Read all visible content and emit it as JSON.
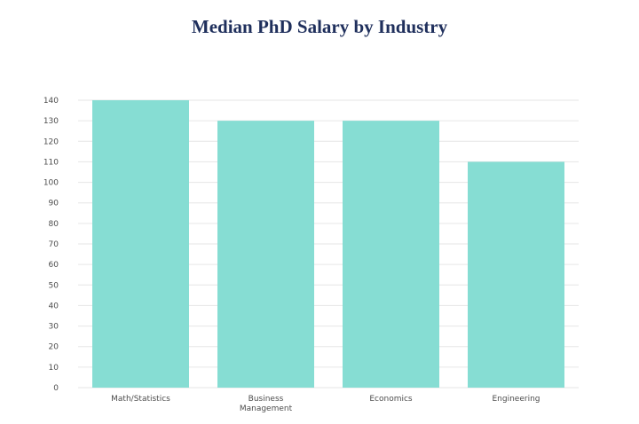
{
  "chart_data": {
    "type": "bar",
    "title": "Median PhD Salary by Industry",
    "xlabel": "",
    "ylabel": "",
    "categories": [
      "Math/Statistics",
      "Business Management",
      "Economics",
      "Engineering"
    ],
    "category_label_lines": [
      [
        "Math/Statistics"
      ],
      [
        "Business",
        "Management"
      ],
      [
        "Economics"
      ],
      [
        "Engineering"
      ]
    ],
    "values": [
      140,
      130,
      130,
      110
    ],
    "ylim": [
      0,
      140
    ],
    "yticks": [
      0,
      10,
      20,
      30,
      40,
      50,
      60,
      70,
      80,
      90,
      100,
      110,
      120,
      130,
      140
    ],
    "grid": true,
    "legend": "none",
    "bar_color": "#86ddd3",
    "grid_color": "#e6e6e6"
  }
}
